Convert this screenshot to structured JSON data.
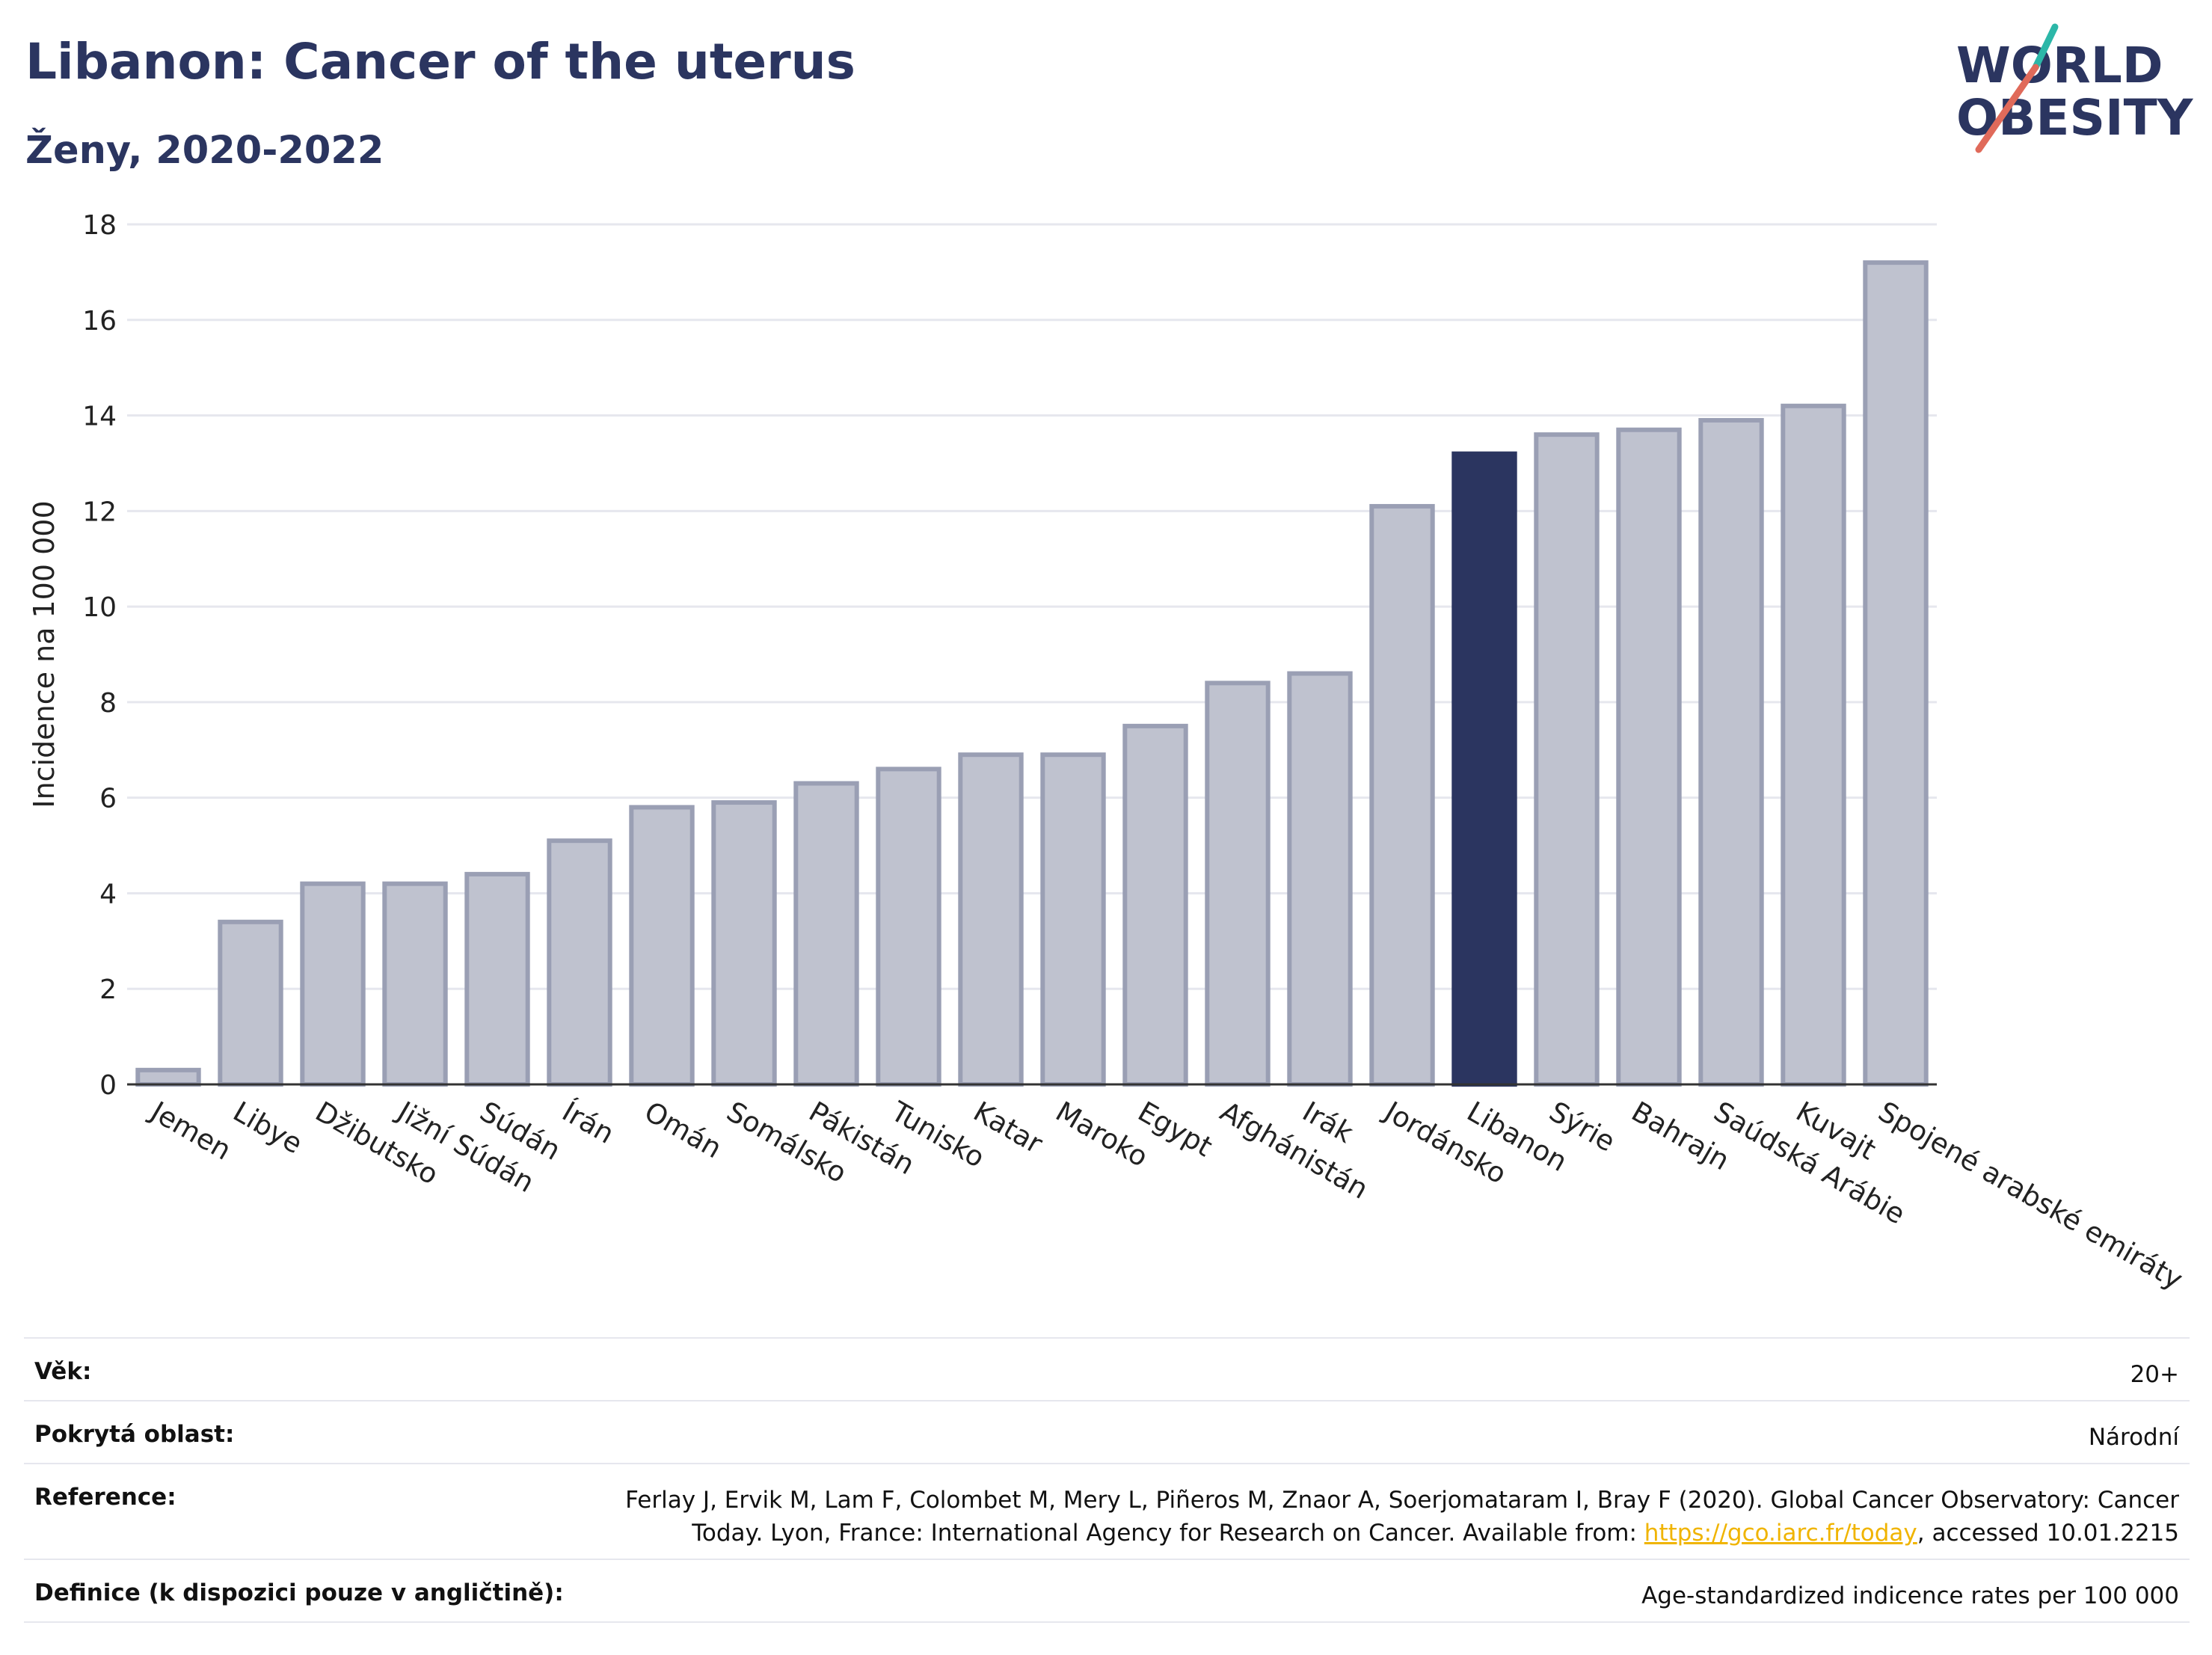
{
  "header": {
    "title": "Libanon: Cancer of the uterus",
    "subtitle": "Ženy, 2020-2022"
  },
  "logo": {
    "line1": "WORLD",
    "line2": "OBESITY",
    "colors": {
      "text": "#2b3560",
      "slash_red": "#e06a5a",
      "slash_teal": "#2cb7a8"
    }
  },
  "chart_data": {
    "type": "bar",
    "title": "Libanon: Cancer of the uterus",
    "subtitle": "Ženy, 2020-2022",
    "xlabel": "",
    "ylabel": "Incidence na 100 000",
    "ylim": [
      0,
      18
    ],
    "yticks": [
      0,
      2,
      4,
      6,
      8,
      10,
      12,
      14,
      16,
      18
    ],
    "grid": true,
    "highlight": "Libanon",
    "colors": {
      "bar": "#bfc2cf",
      "bar_edge": "#9a9fb4",
      "highlight": "#2b3560"
    },
    "categories": [
      "Jemen",
      "Libye",
      "Džibutsko",
      "Jižní Súdán",
      "Súdán",
      "Írán",
      "Omán",
      "Somálsko",
      "Pákistán",
      "Tunisko",
      "Katar",
      "Maroko",
      "Egypt",
      "Afghánistán",
      "Irák",
      "Jordánsko",
      "Libanon",
      "Sýrie",
      "Bahrajn",
      "Saúdská Arábie",
      "Kuvajt",
      "Spojené arabské emiráty"
    ],
    "values": [
      0.3,
      3.4,
      4.2,
      4.2,
      4.4,
      5.1,
      5.8,
      5.9,
      6.3,
      6.6,
      6.9,
      6.9,
      7.5,
      8.4,
      8.6,
      12.1,
      13.2,
      13.6,
      13.7,
      13.9,
      14.2,
      17.2
    ]
  },
  "meta": {
    "age_label": "Věk:",
    "age_value": "20+",
    "area_label": "Pokrytá oblast:",
    "area_value": "Národní",
    "reference_label": "Reference:",
    "reference_line1": "Ferlay J, Ervik M, Lam F, Colombet M, Mery L, Piñeros M, Znaor A, Soerjomataram I, Bray F (2020). Global Cancer Observatory: Cancer",
    "reference_line2_pre": "Today. Lyon, France: International Agency for Research on Cancer. Available from: ",
    "reference_link": "https://gco.iarc.fr/today",
    "reference_line2_post": ", accessed 10.01.2215",
    "definition_label": "Definice (k dispozici pouze v angličtině):",
    "definition_value": "Age-standardized indicence rates per 100 000"
  }
}
